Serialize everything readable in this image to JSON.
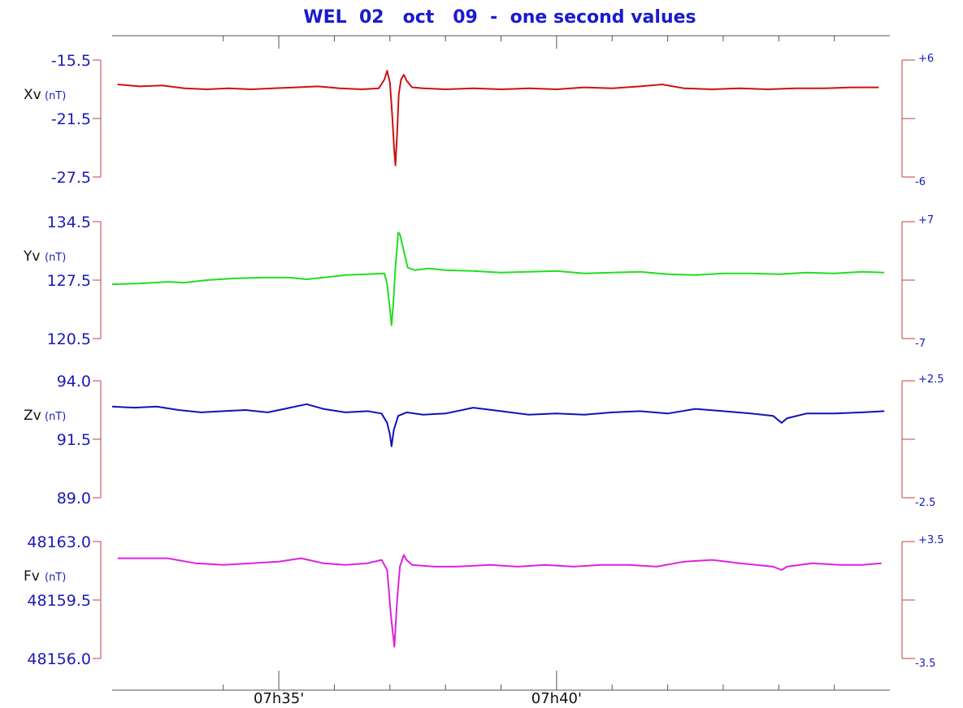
{
  "chart_data": {
    "type": "line",
    "title": "WEL  02   oct   09  -  one second values",
    "x_range": [
      0,
      14
    ],
    "x_ticks": [
      {
        "x": 3,
        "label": "07h35'"
      },
      {
        "x": 8,
        "label": "07h40'"
      }
    ],
    "x_minor": [
      2,
      4,
      5,
      6,
      7,
      9,
      10,
      11,
      12,
      13
    ],
    "panels": [
      {
        "name": "Xv",
        "unit": "(nT)",
        "color": "#cc1111",
        "left_ticks": [
          "-15.5",
          "-21.5",
          "-27.5"
        ],
        "ylim": [
          -27.5,
          -15.5
        ],
        "right_ticks": [
          "+6",
          "-6"
        ],
        "points": [
          [
            0.1,
            -18.0
          ],
          [
            0.5,
            -18.2
          ],
          [
            0.9,
            -18.1
          ],
          [
            1.3,
            -18.4
          ],
          [
            1.7,
            -18.5
          ],
          [
            2.1,
            -18.4
          ],
          [
            2.5,
            -18.5
          ],
          [
            2.9,
            -18.4
          ],
          [
            3.3,
            -18.3
          ],
          [
            3.7,
            -18.2
          ],
          [
            4.1,
            -18.4
          ],
          [
            4.5,
            -18.5
          ],
          [
            4.8,
            -18.4
          ],
          [
            4.9,
            -17.5
          ],
          [
            4.95,
            -16.6
          ],
          [
            5.0,
            -17.8
          ],
          [
            5.04,
            -21.0
          ],
          [
            5.08,
            -25.0
          ],
          [
            5.1,
            -26.3
          ],
          [
            5.13,
            -23.0
          ],
          [
            5.16,
            -19.0
          ],
          [
            5.2,
            -17.5
          ],
          [
            5.25,
            -17.0
          ],
          [
            5.3,
            -17.6
          ],
          [
            5.4,
            -18.3
          ],
          [
            5.6,
            -18.4
          ],
          [
            6.0,
            -18.5
          ],
          [
            6.5,
            -18.4
          ],
          [
            7.0,
            -18.5
          ],
          [
            7.5,
            -18.4
          ],
          [
            8.0,
            -18.5
          ],
          [
            8.5,
            -18.3
          ],
          [
            9.0,
            -18.4
          ],
          [
            9.5,
            -18.2
          ],
          [
            9.9,
            -18.0
          ],
          [
            10.3,
            -18.4
          ],
          [
            10.8,
            -18.5
          ],
          [
            11.3,
            -18.4
          ],
          [
            11.8,
            -18.5
          ],
          [
            12.3,
            -18.4
          ],
          [
            12.8,
            -18.4
          ],
          [
            13.3,
            -18.3
          ],
          [
            13.8,
            -18.3
          ]
        ]
      },
      {
        "name": "Yv",
        "unit": "(nT)",
        "color": "#22dd22",
        "left_ticks": [
          "134.5",
          "127.5",
          "120.5"
        ],
        "ylim": [
          120.5,
          134.5
        ],
        "right_ticks": [
          "+7",
          "-7"
        ],
        "points": [
          [
            0.0,
            127.0
          ],
          [
            0.5,
            127.1
          ],
          [
            1.0,
            127.3
          ],
          [
            1.3,
            127.2
          ],
          [
            1.7,
            127.5
          ],
          [
            2.2,
            127.7
          ],
          [
            2.7,
            127.8
          ],
          [
            3.2,
            127.8
          ],
          [
            3.5,
            127.6
          ],
          [
            3.8,
            127.8
          ],
          [
            4.2,
            128.1
          ],
          [
            4.6,
            128.2
          ],
          [
            4.9,
            128.3
          ],
          [
            4.95,
            127.0
          ],
          [
            5.0,
            124.0
          ],
          [
            5.03,
            122.1
          ],
          [
            5.06,
            124.5
          ],
          [
            5.1,
            129.0
          ],
          [
            5.15,
            133.2
          ],
          [
            5.18,
            133.0
          ],
          [
            5.25,
            131.0
          ],
          [
            5.32,
            129.0
          ],
          [
            5.45,
            128.7
          ],
          [
            5.7,
            128.9
          ],
          [
            6.0,
            128.7
          ],
          [
            6.5,
            128.6
          ],
          [
            7.0,
            128.4
          ],
          [
            7.5,
            128.5
          ],
          [
            8.0,
            128.6
          ],
          [
            8.5,
            128.3
          ],
          [
            9.0,
            128.4
          ],
          [
            9.5,
            128.5
          ],
          [
            10.0,
            128.2
          ],
          [
            10.5,
            128.1
          ],
          [
            11.0,
            128.3
          ],
          [
            11.5,
            128.3
          ],
          [
            12.0,
            128.2
          ],
          [
            12.5,
            128.4
          ],
          [
            13.0,
            128.3
          ],
          [
            13.5,
            128.5
          ],
          [
            13.9,
            128.4
          ]
        ]
      },
      {
        "name": "Zv",
        "unit": "(nT)",
        "color": "#1111bb",
        "left_ticks": [
          "94.0",
          "91.5",
          "89.0"
        ],
        "ylim": [
          89.0,
          94.0
        ],
        "right_ticks": [
          "+2.5",
          "-2.5"
        ],
        "points": [
          [
            0.0,
            92.9
          ],
          [
            0.4,
            92.85
          ],
          [
            0.8,
            92.9
          ],
          [
            1.2,
            92.75
          ],
          [
            1.6,
            92.65
          ],
          [
            2.0,
            92.7
          ],
          [
            2.4,
            92.75
          ],
          [
            2.8,
            92.65
          ],
          [
            3.1,
            92.8
          ],
          [
            3.5,
            93.0
          ],
          [
            3.8,
            92.8
          ],
          [
            4.2,
            92.65
          ],
          [
            4.6,
            92.7
          ],
          [
            4.85,
            92.6
          ],
          [
            4.95,
            92.2
          ],
          [
            5.0,
            91.7
          ],
          [
            5.03,
            91.2
          ],
          [
            5.07,
            91.9
          ],
          [
            5.15,
            92.5
          ],
          [
            5.3,
            92.65
          ],
          [
            5.6,
            92.55
          ],
          [
            6.0,
            92.6
          ],
          [
            6.5,
            92.85
          ],
          [
            7.0,
            92.7
          ],
          [
            7.5,
            92.55
          ],
          [
            8.0,
            92.6
          ],
          [
            8.5,
            92.55
          ],
          [
            9.0,
            92.65
          ],
          [
            9.5,
            92.7
          ],
          [
            10.0,
            92.6
          ],
          [
            10.5,
            92.8
          ],
          [
            11.0,
            92.7
          ],
          [
            11.5,
            92.6
          ],
          [
            11.9,
            92.5
          ],
          [
            12.05,
            92.2
          ],
          [
            12.15,
            92.4
          ],
          [
            12.5,
            92.6
          ],
          [
            13.0,
            92.6
          ],
          [
            13.5,
            92.65
          ],
          [
            13.9,
            92.7
          ]
        ]
      },
      {
        "name": "Fv",
        "unit": "(nT)",
        "color": "#dd22dd",
        "left_ticks": [
          "48163.0",
          "48159.5",
          "48156.0"
        ],
        "ylim": [
          48156.0,
          48163.0
        ],
        "right_ticks": [
          "+3.5",
          "-3.5"
        ],
        "points": [
          [
            0.1,
            48162.0
          ],
          [
            0.5,
            48162.0
          ],
          [
            1.0,
            48162.0
          ],
          [
            1.5,
            48161.7
          ],
          [
            2.0,
            48161.6
          ],
          [
            2.5,
            48161.7
          ],
          [
            3.0,
            48161.8
          ],
          [
            3.4,
            48162.0
          ],
          [
            3.8,
            48161.7
          ],
          [
            4.2,
            48161.6
          ],
          [
            4.6,
            48161.7
          ],
          [
            4.85,
            48161.9
          ],
          [
            4.95,
            48161.3
          ],
          [
            5.02,
            48158.5
          ],
          [
            5.08,
            48156.7
          ],
          [
            5.13,
            48159.5
          ],
          [
            5.18,
            48161.5
          ],
          [
            5.25,
            48162.2
          ],
          [
            5.3,
            48161.9
          ],
          [
            5.4,
            48161.6
          ],
          [
            5.8,
            48161.5
          ],
          [
            6.2,
            48161.5
          ],
          [
            6.8,
            48161.6
          ],
          [
            7.3,
            48161.5
          ],
          [
            7.8,
            48161.6
          ],
          [
            8.3,
            48161.5
          ],
          [
            8.8,
            48161.6
          ],
          [
            9.3,
            48161.6
          ],
          [
            9.8,
            48161.5
          ],
          [
            10.3,
            48161.8
          ],
          [
            10.8,
            48161.9
          ],
          [
            11.3,
            48161.7
          ],
          [
            11.9,
            48161.5
          ],
          [
            12.05,
            48161.3
          ],
          [
            12.15,
            48161.5
          ],
          [
            12.6,
            48161.7
          ],
          [
            13.1,
            48161.6
          ],
          [
            13.5,
            48161.6
          ],
          [
            13.85,
            48161.7
          ]
        ]
      }
    ]
  }
}
